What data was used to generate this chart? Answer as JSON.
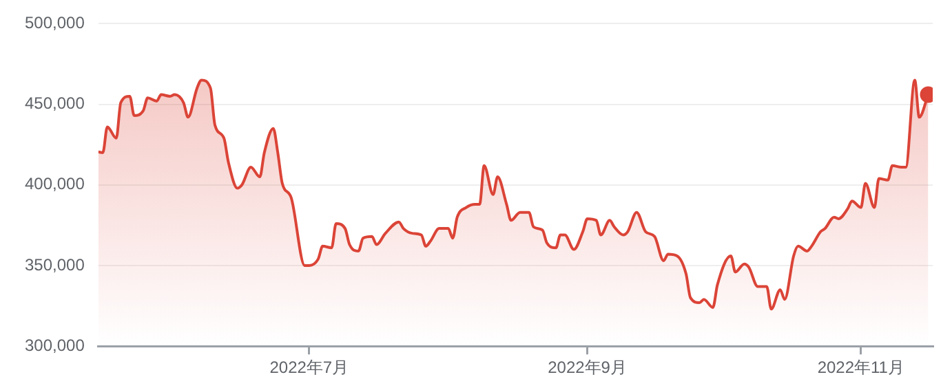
{
  "chart_data": {
    "type": "area",
    "x": [
      "2022-05-15",
      "2022-05-16",
      "2022-05-17",
      "2022-05-19",
      "2022-05-20",
      "2022-05-22",
      "2022-05-23",
      "2022-05-25",
      "2022-05-26",
      "2022-05-28",
      "2022-05-29",
      "2022-05-31",
      "2022-06-01",
      "2022-06-03",
      "2022-06-04",
      "2022-06-06",
      "2022-06-07",
      "2022-06-09",
      "2022-06-10",
      "2022-06-12",
      "2022-06-13",
      "2022-06-15",
      "2022-06-16",
      "2022-06-18",
      "2022-06-20",
      "2022-06-21",
      "2022-06-23",
      "2022-06-24",
      "2022-06-25",
      "2022-06-27",
      "2022-06-30",
      "2022-07-01",
      "2022-07-03",
      "2022-07-04",
      "2022-07-06",
      "2022-07-07",
      "2022-07-09",
      "2022-07-10",
      "2022-07-12",
      "2022-07-13",
      "2022-07-15",
      "2022-07-16",
      "2022-07-18",
      "2022-07-21",
      "2022-07-22",
      "2022-07-24",
      "2022-07-26",
      "2022-07-27",
      "2022-07-28",
      "2022-07-30",
      "2022-08-01",
      "2022-08-02",
      "2022-08-03",
      "2022-08-05",
      "2022-08-07",
      "2022-08-08",
      "2022-08-09",
      "2022-08-11",
      "2022-08-12",
      "2022-08-14",
      "2022-08-15",
      "2022-08-17",
      "2022-08-19",
      "2022-08-20",
      "2022-08-22",
      "2022-08-23",
      "2022-08-25",
      "2022-08-26",
      "2022-08-27",
      "2022-08-29",
      "2022-08-31",
      "2022-09-01",
      "2022-09-03",
      "2022-09-04",
      "2022-09-06",
      "2022-09-07",
      "2022-09-09",
      "2022-09-10",
      "2022-09-12",
      "2022-09-14",
      "2022-09-16",
      "2022-09-18",
      "2022-09-19",
      "2022-09-21",
      "2022-09-23",
      "2022-09-24",
      "2022-09-26",
      "2022-09-27",
      "2022-09-29",
      "2022-09-30",
      "2022-10-03",
      "2022-10-04",
      "2022-10-06",
      "2022-10-07",
      "2022-10-09",
      "2022-10-11",
      "2022-10-12",
      "2022-10-14",
      "2022-10-15",
      "2022-10-17",
      "2022-10-18",
      "2022-10-20",
      "2022-10-21",
      "2022-10-23",
      "2022-10-24",
      "2022-10-26",
      "2022-10-27",
      "2022-10-29",
      "2022-10-30",
      "2022-11-01",
      "2022-11-02",
      "2022-11-04",
      "2022-11-05",
      "2022-11-07",
      "2022-11-08",
      "2022-11-10",
      "2022-11-11",
      "2022-11-13",
      "2022-11-14",
      "2022-11-16"
    ],
    "series": [
      {
        "color": "#db4437",
        "values": [
          420500,
          420000,
          436000,
          429000,
          451000,
          455000,
          443000,
          446000,
          454000,
          452000,
          456000,
          455000,
          456000,
          451000,
          442000,
          460000,
          465000,
          460000,
          437000,
          429000,
          414000,
          398000,
          400000,
          411000,
          405000,
          420000,
          435000,
          420000,
          401000,
          392000,
          350000,
          350000,
          354000,
          362000,
          361000,
          376000,
          373000,
          363000,
          359000,
          367000,
          368000,
          363000,
          370000,
          377000,
          373000,
          370000,
          369000,
          362000,
          365000,
          373000,
          373000,
          367000,
          380000,
          386000,
          388000,
          388000,
          412000,
          394000,
          405000,
          388000,
          378000,
          383000,
          383000,
          374000,
          372000,
          364000,
          361000,
          369000,
          369000,
          360000,
          371000,
          379000,
          378000,
          369000,
          378000,
          374000,
          369000,
          371000,
          383000,
          371000,
          368000,
          353000,
          357000,
          356000,
          345000,
          330000,
          327000,
          329000,
          324000,
          338000,
          356000,
          346000,
          351000,
          349000,
          337000,
          337000,
          323000,
          335000,
          329000,
          356000,
          362000,
          359000,
          362000,
          371000,
          373000,
          380000,
          379000,
          385000,
          390000,
          386000,
          401000,
          386000,
          404000,
          403000,
          412000,
          411000,
          411000,
          465000,
          442000,
          456000
        ]
      }
    ],
    "xlim": [
      "2022-05-15",
      "2022-11-17"
    ],
    "xticks": [
      {
        "value": "2022-07-01",
        "label": "2022年7月"
      },
      {
        "value": "2022-09-01",
        "label": "2022年9月"
      },
      {
        "value": "2022-11-01",
        "label": "2022年11月"
      }
    ],
    "ylim": [
      300000,
      500000
    ],
    "yticks": [
      {
        "value": 300000,
        "label": "300,000"
      },
      {
        "value": 350000,
        "label": "350,000"
      },
      {
        "value": 400000,
        "label": "400,000"
      },
      {
        "value": 450000,
        "label": "450,000"
      },
      {
        "value": 500000,
        "label": "500,000"
      }
    ],
    "grid": "y",
    "legend": false
  }
}
